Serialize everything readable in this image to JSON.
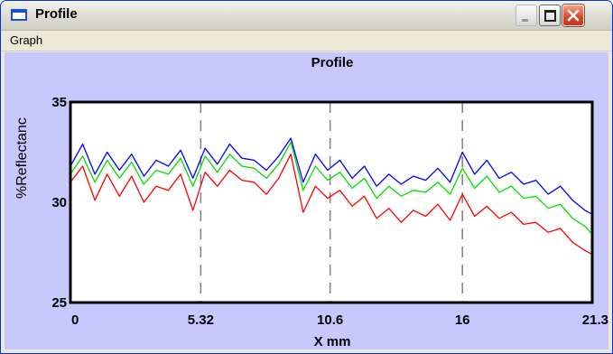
{
  "window": {
    "title": "Profile",
    "icon": "window-icon"
  },
  "titlebar_buttons": {
    "minimize": "minimize-icon",
    "maximize": "maximize-icon",
    "close": "close-icon"
  },
  "menu": {
    "items": [
      "Graph"
    ]
  },
  "colors": {
    "background": "#c7c8fe",
    "blue": "#0000ff",
    "green": "#00e000",
    "red": "#ff0000",
    "grid": "#808080"
  },
  "chart_data": {
    "type": "line",
    "title": "Profile",
    "xlabel": "X mm",
    "ylabel": "%Reflectanc",
    "xlim": [
      0,
      21.3
    ],
    "ylim": [
      25,
      35
    ],
    "xticks": [
      "0",
      "5.32",
      "10.6",
      "16",
      "21.3"
    ],
    "xtick_values": [
      0,
      5.32,
      10.6,
      16,
      21.3
    ],
    "yticks": [
      "25",
      "30",
      "35"
    ],
    "ytick_values": [
      25,
      30,
      35
    ],
    "grid": "vertical dashed at 5.32, 10.6, 16",
    "series": [
      {
        "color": "#0000ff",
        "x": [
          0,
          0.5,
          1,
          1.5,
          2,
          2.5,
          3,
          3.5,
          4,
          4.5,
          5,
          5.5,
          6,
          6.5,
          7,
          7.5,
          8,
          8.5,
          9,
          9.5,
          10,
          10.5,
          11,
          11.5,
          12,
          12.5,
          13,
          13.5,
          14,
          14.5,
          15,
          15.5,
          16,
          16.5,
          17,
          17.5,
          18,
          18.5,
          19,
          19.5,
          20,
          20.5,
          21,
          21.3
        ],
        "values": [
          31.8,
          32.9,
          31.4,
          32.5,
          31.6,
          32.4,
          31.3,
          32.1,
          31.8,
          32.6,
          31.2,
          32.7,
          31.9,
          32.9,
          32.2,
          32.1,
          31.6,
          32.3,
          33.2,
          31.0,
          32.4,
          31.6,
          32.1,
          31.2,
          31.8,
          30.8,
          31.4,
          30.9,
          31.3,
          31.1,
          31.7,
          31.0,
          32.5,
          31.4,
          32.1,
          31.2,
          31.5,
          30.9,
          31.1,
          30.4,
          30.8,
          30.1,
          29.6,
          29.4
        ]
      },
      {
        "color": "#00e000",
        "x": [
          0,
          0.5,
          1,
          1.5,
          2,
          2.5,
          3,
          3.5,
          4,
          4.5,
          5,
          5.5,
          6,
          6.5,
          7,
          7.5,
          8,
          8.5,
          9,
          9.5,
          10,
          10.5,
          11,
          11.5,
          12,
          12.5,
          13,
          13.5,
          14,
          14.5,
          15,
          15.5,
          16,
          16.5,
          17,
          17.5,
          18,
          18.5,
          19,
          19.5,
          20,
          20.5,
          21,
          21.3
        ],
        "values": [
          31.4,
          32.3,
          31.0,
          32.1,
          31.2,
          32.0,
          30.9,
          31.6,
          31.4,
          32.2,
          30.8,
          32.3,
          31.5,
          32.4,
          31.8,
          31.7,
          31.2,
          31.9,
          33.0,
          30.6,
          31.8,
          31.1,
          31.5,
          30.7,
          31.2,
          30.2,
          30.8,
          30.3,
          30.6,
          30.5,
          31.0,
          30.4,
          31.7,
          30.7,
          31.3,
          30.5,
          30.8,
          30.2,
          30.3,
          29.7,
          29.9,
          29.2,
          28.8,
          28.4
        ]
      },
      {
        "color": "#ff0000",
        "x": [
          0,
          0.5,
          1,
          1.5,
          2,
          2.5,
          3,
          3.5,
          4,
          4.5,
          5,
          5.5,
          6,
          6.5,
          7,
          7.5,
          8,
          8.5,
          9,
          9.5,
          10,
          10.5,
          11,
          11.5,
          12,
          12.5,
          13,
          13.5,
          14,
          14.5,
          15,
          15.5,
          16,
          16.5,
          17,
          17.5,
          18,
          18.5,
          19,
          19.5,
          20,
          20.5,
          21,
          21.3
        ],
        "values": [
          31.0,
          31.8,
          30.1,
          31.4,
          30.3,
          31.3,
          30.0,
          30.8,
          30.6,
          31.4,
          29.6,
          31.5,
          30.8,
          31.6,
          31.1,
          31.0,
          30.4,
          31.2,
          32.4,
          29.5,
          30.8,
          30.2,
          30.6,
          29.8,
          30.3,
          29.2,
          29.7,
          29.0,
          29.6,
          29.3,
          29.9,
          29.1,
          30.4,
          29.3,
          29.8,
          29.2,
          29.5,
          28.9,
          29.0,
          28.5,
          28.7,
          28.0,
          27.6,
          27.4
        ]
      }
    ]
  }
}
